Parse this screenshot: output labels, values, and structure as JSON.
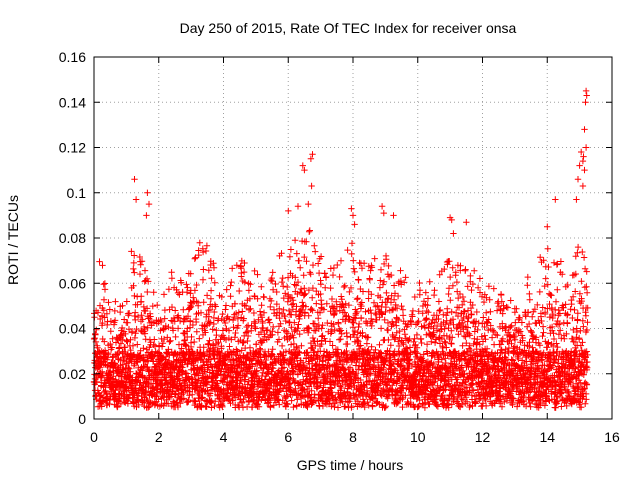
{
  "chart_data": {
    "type": "scatter",
    "title": "Day 250 of 2015, Rate Of TEC Index for receiver onsa",
    "xlabel": "GPS time / hours",
    "ylabel": "ROTI / TECUs",
    "xlim": [
      0,
      16
    ],
    "ylim": [
      0,
      0.16
    ],
    "xticks": [
      0,
      2,
      4,
      6,
      8,
      10,
      12,
      14,
      16
    ],
    "yticks": [
      0,
      0.02,
      0.04,
      0.06,
      0.08,
      0.1,
      0.12,
      0.14,
      0.16
    ],
    "xtick_labels": [
      "0",
      "2",
      "4",
      "6",
      "8",
      "10",
      "12",
      "14",
      "16"
    ],
    "ytick_labels": [
      "0",
      "0.02",
      "0.04",
      "0.06",
      "0.08",
      "0.1",
      "0.12",
      "0.14",
      "0.16"
    ],
    "grid": true,
    "marker": "+",
    "color": "#ff0000",
    "series": [
      {
        "name": "ROTI",
        "description_note": "dense cloud sampled every ~30 s from 0 to 15.25 h",
        "x_range": [
          0,
          15.25
        ],
        "baseline_range": [
          0.005,
          0.03
        ],
        "envelope": [
          [
            0.0,
            0.06
          ],
          [
            0.2,
            0.075
          ],
          [
            0.5,
            0.055
          ],
          [
            0.8,
            0.05
          ],
          [
            1.0,
            0.06
          ],
          [
            1.2,
            0.08
          ],
          [
            1.5,
            0.07
          ],
          [
            1.8,
            0.06
          ],
          [
            2.0,
            0.055
          ],
          [
            2.3,
            0.07
          ],
          [
            2.6,
            0.06
          ],
          [
            3.0,
            0.07
          ],
          [
            3.3,
            0.08
          ],
          [
            3.6,
            0.075
          ],
          [
            4.0,
            0.06
          ],
          [
            4.4,
            0.072
          ],
          [
            4.8,
            0.068
          ],
          [
            5.2,
            0.062
          ],
          [
            5.6,
            0.07
          ],
          [
            6.0,
            0.078
          ],
          [
            6.4,
            0.08
          ],
          [
            6.7,
            0.085
          ],
          [
            7.0,
            0.072
          ],
          [
            7.5,
            0.068
          ],
          [
            8.0,
            0.08
          ],
          [
            8.4,
            0.072
          ],
          [
            8.8,
            0.075
          ],
          [
            9.2,
            0.072
          ],
          [
            9.6,
            0.065
          ],
          [
            10.0,
            0.062
          ],
          [
            10.5,
            0.064
          ],
          [
            11.0,
            0.072
          ],
          [
            11.5,
            0.07
          ],
          [
            12.0,
            0.062
          ],
          [
            12.5,
            0.056
          ],
          [
            13.0,
            0.052
          ],
          [
            13.4,
            0.064
          ],
          [
            13.8,
            0.072
          ],
          [
            14.2,
            0.08
          ],
          [
            14.6,
            0.068
          ],
          [
            15.0,
            0.078
          ],
          [
            15.25,
            0.07
          ]
        ],
        "outliers": [
          {
            "x": 1.25,
            "y": 0.106
          },
          {
            "x": 1.3,
            "y": 0.097
          },
          {
            "x": 1.65,
            "y": 0.1
          },
          {
            "x": 1.7,
            "y": 0.095
          },
          {
            "x": 1.62,
            "y": 0.09
          },
          {
            "x": 6.45,
            "y": 0.112
          },
          {
            "x": 6.5,
            "y": 0.11
          },
          {
            "x": 6.75,
            "y": 0.117
          },
          {
            "x": 6.7,
            "y": 0.115
          },
          {
            "x": 6.72,
            "y": 0.103
          },
          {
            "x": 6.0,
            "y": 0.092
          },
          {
            "x": 6.3,
            "y": 0.094
          },
          {
            "x": 6.62,
            "y": 0.095
          },
          {
            "x": 7.95,
            "y": 0.093
          },
          {
            "x": 8.0,
            "y": 0.09
          },
          {
            "x": 8.05,
            "y": 0.086
          },
          {
            "x": 8.9,
            "y": 0.094
          },
          {
            "x": 8.95,
            "y": 0.091
          },
          {
            "x": 9.25,
            "y": 0.09
          },
          {
            "x": 11.0,
            "y": 0.089
          },
          {
            "x": 11.05,
            "y": 0.088
          },
          {
            "x": 11.5,
            "y": 0.087
          },
          {
            "x": 11.1,
            "y": 0.082
          },
          {
            "x": 14.25,
            "y": 0.097
          },
          {
            "x": 14.0,
            "y": 0.085
          },
          {
            "x": 14.9,
            "y": 0.097
          },
          {
            "x": 14.95,
            "y": 0.106
          },
          {
            "x": 15.0,
            "y": 0.112
          },
          {
            "x": 15.05,
            "y": 0.118
          },
          {
            "x": 15.1,
            "y": 0.114
          },
          {
            "x": 15.15,
            "y": 0.11
          },
          {
            "x": 15.12,
            "y": 0.116
          },
          {
            "x": 15.15,
            "y": 0.128
          },
          {
            "x": 15.18,
            "y": 0.14
          },
          {
            "x": 15.2,
            "y": 0.145
          },
          {
            "x": 15.22,
            "y": 0.143
          },
          {
            "x": 15.2,
            "y": 0.12
          },
          {
            "x": 15.1,
            "y": 0.103
          }
        ]
      }
    ]
  }
}
